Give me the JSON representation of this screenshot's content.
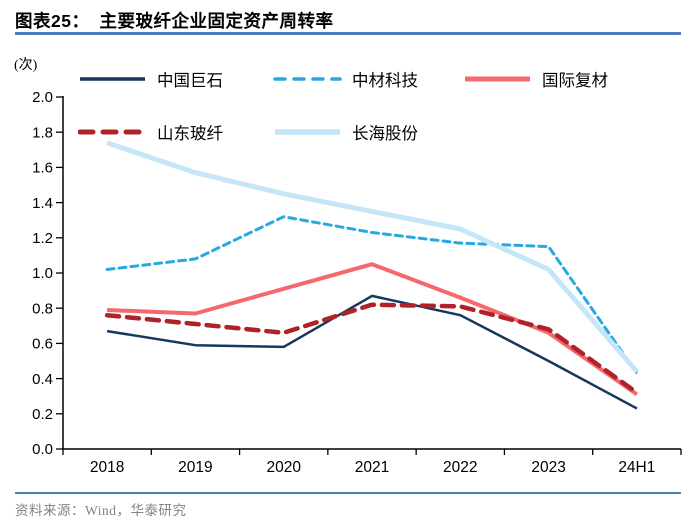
{
  "header": {
    "tag": "图表25：",
    "title": "主要玻纤企业固定资产周转率"
  },
  "footer": {
    "source": "资料来源：Wind，华泰研究"
  },
  "chart_data": {
    "type": "line",
    "title": "主要玻纤企业固定资产周转率",
    "unit_label": "(次)",
    "categories": [
      "2018",
      "2019",
      "2020",
      "2021",
      "2022",
      "2023",
      "24H1"
    ],
    "y_tick_labels": [
      "2.0",
      "1.8",
      "1.6",
      "1.4",
      "1.2",
      "1.0",
      "0.8",
      "0.6",
      "0.4",
      "0.2",
      "0.0"
    ],
    "ylim": [
      0.0,
      2.0
    ],
    "grid": false,
    "legend_position": "top-inside",
    "series": [
      {
        "name": "中国巨石",
        "color": "#17375E",
        "style": "solid",
        "values": [
          0.67,
          0.59,
          0.58,
          0.87,
          0.76,
          0.5,
          0.23
        ]
      },
      {
        "name": "中材科技",
        "color": "#29A8E0",
        "style": "dashed",
        "values": [
          1.02,
          1.08,
          1.32,
          1.23,
          1.17,
          1.15,
          0.43
        ]
      },
      {
        "name": "国际复材",
        "color": "#F4696B",
        "style": "solid",
        "values": [
          0.79,
          0.77,
          0.91,
          1.05,
          0.86,
          0.66,
          0.31
        ]
      },
      {
        "name": "山东玻纤",
        "color": "#B02228",
        "style": "dashed",
        "values": [
          0.76,
          0.71,
          0.66,
          0.82,
          0.81,
          0.68,
          0.32
        ]
      },
      {
        "name": "长海股份",
        "color": "#C5E6F7",
        "style": "solid",
        "values": [
          1.74,
          1.57,
          1.45,
          1.35,
          1.25,
          1.02,
          0.44
        ]
      }
    ]
  }
}
